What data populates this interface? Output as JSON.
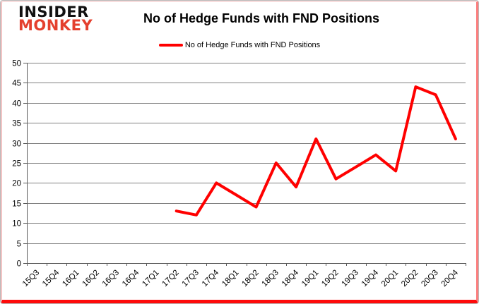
{
  "logo": {
    "line1": "INSIDER",
    "line2": "MONKEY"
  },
  "title": "No of Hedge Funds with FND Positions",
  "legend": {
    "label": "No of Hedge Funds with FND Positions"
  },
  "colors": {
    "line": "#ff0000",
    "grid": "#808080",
    "axis": "#595959",
    "text": "#000000",
    "logo_black": "#111111",
    "logo_red": "#e4402e",
    "border_pink": "#f3c4c4",
    "border_red": "#fe0a0a"
  },
  "chart_data": {
    "type": "line",
    "title": "No of Hedge Funds with FND Positions",
    "categories": [
      "15Q3",
      "15Q4",
      "16Q1",
      "16Q2",
      "16Q3",
      "16Q4",
      "17Q1",
      "17Q2",
      "17Q3",
      "17Q4",
      "18Q1",
      "18Q2",
      "18Q3",
      "18Q4",
      "19Q1",
      "19Q2",
      "19Q3",
      "19Q4",
      "20Q1",
      "20Q2",
      "20Q3",
      "20Q4"
    ],
    "series": [
      {
        "name": "No of Hedge Funds with FND Positions",
        "color": "#ff0000",
        "values": [
          null,
          null,
          null,
          null,
          null,
          null,
          null,
          13,
          12,
          20,
          17,
          14,
          25,
          19,
          31,
          21,
          24,
          27,
          23,
          44,
          42,
          31
        ]
      }
    ],
    "xlabel": "",
    "ylabel": "",
    "ylim": [
      0,
      50
    ],
    "ytick_step": 5,
    "grid": "horizontal",
    "legend_position": "top"
  }
}
